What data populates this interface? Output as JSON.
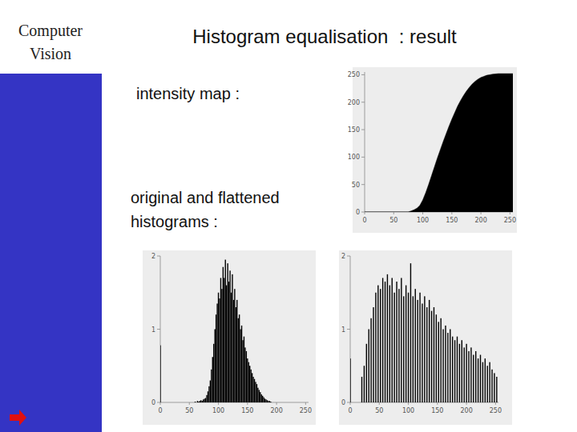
{
  "slide": {
    "side_title": [
      "Computer",
      "Vision"
    ],
    "title": "Histogram equalisation  : result",
    "label_map": "intensity map :",
    "label_hist": [
      "original and flattened",
      "histograms :"
    ]
  },
  "chart_data": [
    {
      "type": "area",
      "color": "#000000",
      "x": [
        0,
        50,
        70,
        75,
        80,
        85,
        90,
        95,
        100,
        105,
        110,
        115,
        120,
        125,
        130,
        135,
        140,
        145,
        150,
        155,
        160,
        165,
        170,
        175,
        180,
        185,
        190,
        195,
        200,
        205,
        210,
        215,
        220,
        230,
        240,
        255
      ],
      "values": [
        0,
        0,
        0,
        0,
        2,
        4,
        7,
        12,
        22,
        35,
        50,
        66,
        82,
        98,
        113,
        128,
        142,
        156,
        169,
        181,
        193,
        203,
        212,
        220,
        227,
        233,
        238,
        242,
        245,
        247,
        249,
        250,
        251,
        252,
        252,
        252
      ],
      "xlim": [
        0,
        255
      ],
      "ylim": [
        0,
        255
      ],
      "xticks": [
        0,
        50,
        100,
        150,
        200,
        250
      ],
      "yticks": [
        0,
        50,
        100,
        150,
        200,
        250
      ]
    },
    {
      "type": "bar",
      "color": "#000000",
      "x": [
        0,
        60,
        62,
        64,
        66,
        68,
        70,
        72,
        74,
        76,
        78,
        80,
        82,
        84,
        86,
        88,
        90,
        92,
        94,
        96,
        98,
        100,
        102,
        104,
        106,
        108,
        110,
        112,
        114,
        116,
        118,
        120,
        122,
        124,
        126,
        128,
        130,
        132,
        134,
        136,
        138,
        140,
        142,
        144,
        146,
        148,
        150,
        152,
        154,
        156,
        158,
        160,
        162,
        164,
        166,
        168,
        170,
        172,
        174,
        176,
        178,
        180,
        182,
        184,
        186,
        188,
        190
      ],
      "values": [
        0.78,
        0.01,
        0,
        0.02,
        0.01,
        0.02,
        0.03,
        0.02,
        0.04,
        0.05,
        0.06,
        0.1,
        0.15,
        0.22,
        0.3,
        0.45,
        0.62,
        0.8,
        1.0,
        1.2,
        1.35,
        1.5,
        1.42,
        1.7,
        1.55,
        1.85,
        1.7,
        1.95,
        1.6,
        1.9,
        1.65,
        1.8,
        1.5,
        1.75,
        1.4,
        1.55,
        1.3,
        1.4,
        1.15,
        1.2,
        1.0,
        1.05,
        0.85,
        0.9,
        0.75,
        0.7,
        0.6,
        0.55,
        0.5,
        0.45,
        0.4,
        0.35,
        0.32,
        0.28,
        0.25,
        0.2,
        0.17,
        0.14,
        0.11,
        0.09,
        0.07,
        0.05,
        0.04,
        0.03,
        0.02,
        0.02,
        0.01
      ],
      "xlim": [
        0,
        255
      ],
      "ylim": [
        0,
        2
      ],
      "xticks": [
        0,
        50,
        100,
        150,
        200,
        250
      ],
      "yticks": [
        0,
        1,
        2
      ]
    },
    {
      "type": "bar",
      "color": "#000000",
      "x": [
        0,
        20,
        24,
        28,
        32,
        36,
        40,
        44,
        48,
        52,
        56,
        60,
        64,
        68,
        72,
        76,
        80,
        84,
        88,
        92,
        96,
        100,
        104,
        108,
        112,
        116,
        120,
        124,
        128,
        132,
        136,
        140,
        144,
        148,
        152,
        156,
        160,
        164,
        168,
        172,
        176,
        180,
        184,
        188,
        192,
        196,
        200,
        204,
        208,
        212,
        216,
        220,
        224,
        228,
        232,
        236,
        240,
        244,
        248,
        252
      ],
      "values": [
        0.6,
        0.35,
        0.5,
        0.8,
        1.0,
        1.15,
        1.3,
        1.5,
        1.6,
        1.55,
        1.7,
        1.65,
        1.75,
        1.6,
        1.7,
        1.5,
        1.65,
        1.55,
        1.7,
        1.45,
        1.6,
        1.5,
        1.9,
        1.45,
        1.55,
        1.4,
        1.5,
        1.35,
        1.45,
        1.3,
        1.4,
        1.25,
        1.3,
        1.2,
        1.1,
        1.15,
        1.0,
        1.05,
        0.95,
        1.0,
        0.9,
        0.85,
        0.9,
        0.8,
        0.85,
        0.75,
        0.8,
        0.7,
        0.75,
        0.65,
        0.7,
        0.6,
        0.65,
        0.55,
        0.6,
        0.5,
        0.55,
        0.45,
        0.4,
        0.35
      ],
      "xlim": [
        0,
        255
      ],
      "ylim": [
        0,
        2
      ],
      "xticks": [
        0,
        50,
        100,
        150,
        200,
        250
      ],
      "yticks": [
        0,
        1,
        2
      ]
    }
  ]
}
